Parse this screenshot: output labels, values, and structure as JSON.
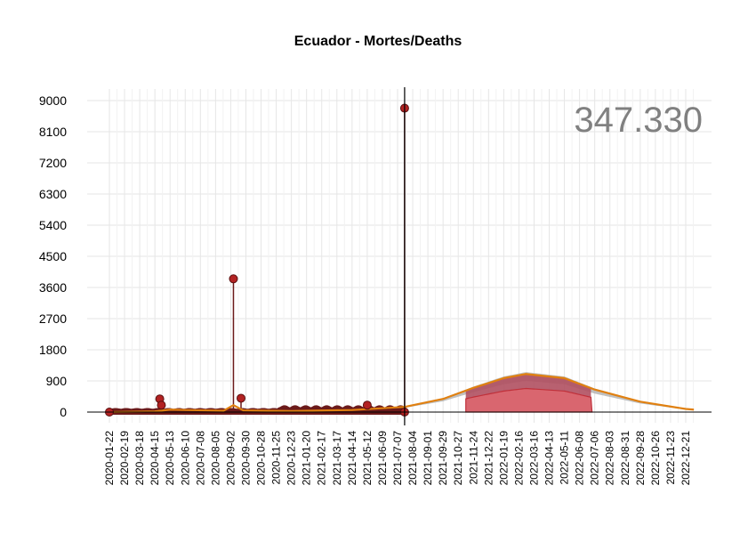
{
  "title": "Ecuador - Mortes/Deaths",
  "counter": "347.330",
  "colors": {
    "bars": "#6b1a1a",
    "points": "#b22222",
    "trend": "#e08010",
    "forecast_fill": "#d9666f",
    "forecast_band": "#b05060",
    "forecast_grey": "#b0b0b0",
    "grid": "#e6e6e6"
  },
  "chart_data": {
    "type": "line",
    "title": "Ecuador - Mortes/Deaths",
    "xlabel": "",
    "ylabel": "",
    "ylim": [
      0,
      9000
    ],
    "y_ticks": [
      0,
      900,
      1800,
      2700,
      3600,
      4500,
      5400,
      6300,
      7200,
      8100,
      9000
    ],
    "x_range": [
      "2020-01-22",
      "2023-01-05"
    ],
    "x_tick_labels": [
      "2020-01-22",
      "2020-02-19",
      "2020-03-18",
      "2020-04-15",
      "2020-05-13",
      "2020-06-10",
      "2020-07-08",
      "2020-08-05",
      "2020-09-02",
      "2020-09-30",
      "2020-10-28",
      "2020-11-25",
      "2020-12-23",
      "2021-01-20",
      "2021-02-17",
      "2021-03-17",
      "2021-04-14",
      "2021-05-12",
      "2021-06-09",
      "2021-07-07",
      "2021-08-04",
      "2021-09-01",
      "2021-09-29",
      "2021-10-27",
      "2021-11-24",
      "2021-12-22",
      "2022-01-19",
      "2022-02-16",
      "2022-03-16",
      "2022-04-13",
      "2022-05-11",
      "2022-06-08",
      "2022-07-06",
      "2022-08-03",
      "2022-08-31",
      "2022-09-28",
      "2022-10-26",
      "2022-11-23",
      "2022-12-21"
    ],
    "today": "2021-07-20",
    "highlighted_window": [
      "2021-11-10",
      "2022-07-01"
    ],
    "daily_deaths_notable": [
      {
        "date": "2020-04-24",
        "value": 380
      },
      {
        "date": "2020-04-27",
        "value": 200
      },
      {
        "date": "2020-09-07",
        "value": 3850
      },
      {
        "date": "2020-09-21",
        "value": 400
      },
      {
        "date": "2021-05-12",
        "value": 200
      },
      {
        "date": "2021-07-20",
        "value": 8780
      }
    ],
    "typical_daily_deaths_first_wave": 40,
    "typical_daily_deaths_2021": 120,
    "forecast_peak": {
      "date": "2022-03-01",
      "value": 1100
    },
    "series": [
      {
        "name": "",
        "type": "bar",
        "values_description": "daily deaths"
      },
      {
        "name": "",
        "type": "line",
        "values_description": "smoothed trend"
      }
    ],
    "trend_points": [
      {
        "date": "2020-01-22",
        "value": 0
      },
      {
        "date": "2020-04-15",
        "value": 20
      },
      {
        "date": "2020-05-13",
        "value": 70
      },
      {
        "date": "2020-06-10",
        "value": 60
      },
      {
        "date": "2020-08-20",
        "value": 40
      },
      {
        "date": "2020-09-07",
        "value": 200
      },
      {
        "date": "2020-09-25",
        "value": 50
      },
      {
        "date": "2020-12-23",
        "value": 30
      },
      {
        "date": "2021-04-14",
        "value": 60
      },
      {
        "date": "2021-07-20",
        "value": 150
      },
      {
        "date": "2021-09-29",
        "value": 380
      },
      {
        "date": "2021-11-24",
        "value": 700
      },
      {
        "date": "2022-01-19",
        "value": 980
      },
      {
        "date": "2022-03-01",
        "value": 1100
      },
      {
        "date": "2022-05-11",
        "value": 980
      },
      {
        "date": "2022-07-06",
        "value": 650
      },
      {
        "date": "2022-09-28",
        "value": 300
      },
      {
        "date": "2022-12-21",
        "value": 90
      },
      {
        "date": "2023-01-05",
        "value": 70
      }
    ]
  }
}
